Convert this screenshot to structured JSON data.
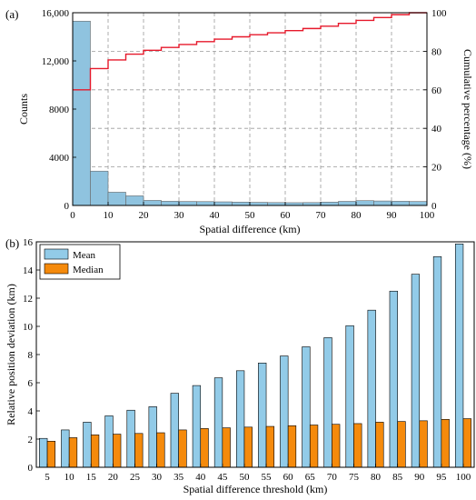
{
  "chart_data": [
    {
      "panel_label": "(a)",
      "type": "bar",
      "bin_width": 5,
      "x_bins_start": [
        0,
        5,
        10,
        15,
        20,
        25,
        30,
        35,
        40,
        45,
        50,
        55,
        60,
        65,
        70,
        75,
        80,
        85,
        90,
        95
      ],
      "counts": [
        15300,
        2850,
        1100,
        800,
        420,
        350,
        330,
        320,
        300,
        280,
        260,
        240,
        230,
        240,
        280,
        340,
        400,
        370,
        350,
        330
      ],
      "cumulative_percentage": [
        60,
        71,
        75.5,
        78.5,
        80.5,
        82,
        83.5,
        85,
        86.3,
        87.5,
        88.6,
        89.6,
        90.7,
        91.8,
        93,
        94.5,
        96,
        97.5,
        99,
        100
      ],
      "xlabel": "Spatial difference (km)",
      "ylabel_left": "Counts",
      "ylabel_right": "Cumulative percentage (%)",
      "xlim": [
        0,
        100
      ],
      "ylim_left": [
        0,
        16000
      ],
      "ylim_right": [
        0,
        100
      ],
      "x_ticks": [
        "0",
        "10",
        "20",
        "30",
        "40",
        "50",
        "60",
        "70",
        "80",
        "90",
        "100"
      ],
      "y_ticks_left": [
        "0",
        "4000",
        "8000",
        "12,000",
        "16,000"
      ],
      "y_ticks_right": [
        "0",
        "20",
        "40",
        "60",
        "80",
        "100"
      ],
      "grid": "dashed",
      "bar_color": "#8fc3df",
      "line_color": "#e6192b"
    },
    {
      "panel_label": "(b)",
      "type": "bar",
      "categories": [
        "5",
        "10",
        "15",
        "20",
        "25",
        "30",
        "35",
        "40",
        "45",
        "50",
        "55",
        "60",
        "65",
        "70",
        "75",
        "80",
        "85",
        "90",
        "95",
        "100"
      ],
      "series": [
        {
          "name": "Mean",
          "values": [
            2.05,
            2.65,
            3.2,
            3.65,
            4.05,
            4.3,
            5.25,
            5.8,
            6.35,
            6.85,
            7.4,
            7.9,
            8.55,
            9.2,
            10.05,
            11.15,
            12.5,
            13.7,
            14.95,
            15.85
          ],
          "color": "#92cbe8"
        },
        {
          "name": "Median",
          "values": [
            1.85,
            2.1,
            2.3,
            2.35,
            2.4,
            2.45,
            2.65,
            2.75,
            2.8,
            2.85,
            2.9,
            2.95,
            3.0,
            3.05,
            3.1,
            3.2,
            3.25,
            3.3,
            3.4,
            3.45
          ],
          "color": "#f58a0c"
        }
      ],
      "xlabel": "Spatial difference threshold (km)",
      "ylabel": "Relative position deviation (km)",
      "ylim": [
        0,
        16
      ],
      "y_ticks": [
        "0",
        "2",
        "4",
        "6",
        "8",
        "10",
        "12",
        "14",
        "16"
      ],
      "legend_position": "top-left"
    }
  ]
}
